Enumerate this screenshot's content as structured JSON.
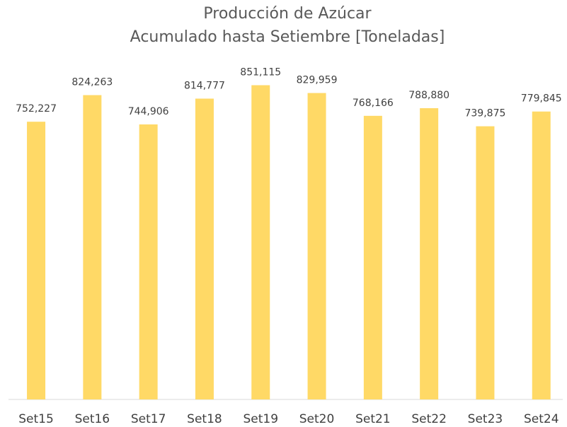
{
  "chart_data": {
    "type": "bar",
    "title": "Producción de Azúcar",
    "subtitle": "Acumulado hasta Setiembre [Toneladas]",
    "categories": [
      "Set15",
      "Set16",
      "Set17",
      "Set18",
      "Set19",
      "Set20",
      "Set21",
      "Set22",
      "Set23",
      "Set24"
    ],
    "values": [
      752227,
      824263,
      744906,
      814777,
      851115,
      829959,
      768166,
      788880,
      739875,
      779845
    ],
    "value_labels": [
      "752,227",
      "824,263",
      "744,906",
      "814,777",
      "851,115",
      "829,959",
      "768,166",
      "788,880",
      "739,875",
      "779,845"
    ],
    "color": "#FFD966",
    "ylim": [
      0,
      900000
    ]
  }
}
